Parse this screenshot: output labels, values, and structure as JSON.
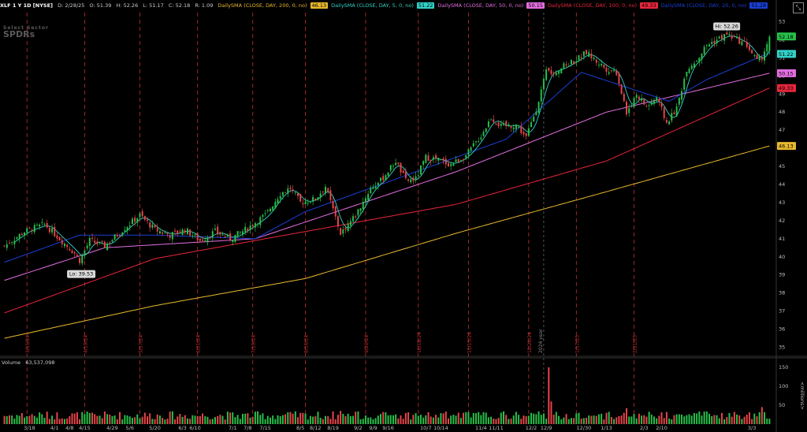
{
  "header": {
    "symbol": "XLF 1 Y 1D [NYSE]",
    "date": "D: 2/28/25",
    "open": "O: 51.39",
    "high": "H: 52.26",
    "low": "L: 51.17",
    "close": "C: 52.18",
    "range": "R: 1.09",
    "studies": [
      {
        "label": "DailySMA (CLOSE, DAY, 200, 0, no)",
        "value": "46.13",
        "color": "#e8b92e"
      },
      {
        "label": "DailySMA (CLOSE, DAY, 5, 0, no)",
        "value": "51.22",
        "color": "#32d2c8"
      },
      {
        "label": "DailySMA (CLOSE, DAY, 50, 0, no)",
        "value": "50.15",
        "color": "#e36ee0"
      },
      {
        "label": "DailySMA (CLOSE, DAY, 100, 0, no)",
        "value": "49.33",
        "color": "#e8263c"
      },
      {
        "label": "DailySMA (CLOSE, DAY, 20, 0, no)",
        "value": "51.28",
        "color": "#1a3fd6"
      }
    ]
  },
  "logo": {
    "line1": "Select Sector",
    "line2": "SPDRs"
  },
  "annotations": {
    "hi": "Hi: 52.26",
    "lo": "Lo: 39.53",
    "year_marker": "2024 year"
  },
  "volume": {
    "label": "Volume",
    "value": "63,537,098",
    "axis_label": "<millions>",
    "ticks": [
      50,
      100,
      150
    ]
  },
  "colors": {
    "up": "#27c04a",
    "down": "#e8454a",
    "background": "#000000",
    "expiry_line": "#c03030",
    "grid_text": "#bfbfbf"
  },
  "chart_data": {
    "type": "candlestick",
    "title": "XLF 1 Y 1D [NYSE]",
    "ylim": [
      34.5,
      53.5
    ],
    "yticks": [
      35,
      36,
      37,
      38,
      39,
      40,
      41,
      42,
      43,
      44,
      45,
      46,
      47,
      48,
      49,
      50,
      51,
      52,
      53
    ],
    "price_labels": [
      {
        "value": 52.18,
        "text": "52.18",
        "color": "#27c04a"
      },
      {
        "value": 51.22,
        "text": "51.22",
        "color": "#32d2c8"
      },
      {
        "value": 50.15,
        "text": "50.15",
        "color": "#e36ee0"
      },
      {
        "value": 49.33,
        "text": "49.33",
        "color": "#e8263c"
      },
      {
        "value": 46.13,
        "text": "46.13",
        "color": "#e8b92e"
      }
    ],
    "x_date_labels": [
      "3/18",
      "4/1",
      "4/8",
      "4/15",
      "4/29",
      "5/6",
      "5/20",
      "6/3",
      "6/10",
      "7/1",
      "7/8",
      "7/15",
      "8/5",
      "8/12",
      "8/19",
      "9/2",
      "9/9",
      "9/16",
      "10/7",
      "10/14",
      "11/4",
      "11/11",
      "12/2",
      "12/9",
      "12/30",
      "1/13",
      "2/3",
      "2/10",
      "3/3"
    ],
    "expiration_labels": [
      "3/15/24",
      "4/19/24",
      "5/17/24",
      "6/21/24",
      "7/19/24",
      "8/16/24",
      "9/20/24",
      "10/18/24",
      "11/15/24",
      "12/20/24",
      "1/17/25",
      "2/21/25"
    ],
    "close_anchors": [
      [
        0,
        40.6
      ],
      [
        8,
        41.4
      ],
      [
        16,
        41.8
      ],
      [
        22,
        41.0
      ],
      [
        28,
        40.2
      ],
      [
        30,
        39.8
      ],
      [
        34,
        40.9
      ],
      [
        40,
        40.6
      ],
      [
        48,
        41.6
      ],
      [
        54,
        42.3
      ],
      [
        60,
        41.5
      ],
      [
        66,
        41.2
      ],
      [
        72,
        41.5
      ],
      [
        78,
        40.9
      ],
      [
        84,
        41.4
      ],
      [
        90,
        41.0
      ],
      [
        96,
        41.5
      ],
      [
        104,
        42.3
      ],
      [
        110,
        43.5
      ],
      [
        114,
        43.8
      ],
      [
        118,
        43.0
      ],
      [
        124,
        43.2
      ],
      [
        128,
        43.9
      ],
      [
        134,
        41.3
      ],
      [
        140,
        42.3
      ],
      [
        146,
        43.8
      ],
      [
        150,
        44.2
      ],
      [
        156,
        45.3
      ],
      [
        160,
        44.2
      ],
      [
        164,
        44.3
      ],
      [
        168,
        45.5
      ],
      [
        172,
        45.4
      ],
      [
        178,
        45.1
      ],
      [
        184,
        45.6
      ],
      [
        190,
        46.7
      ],
      [
        194,
        47.7
      ],
      [
        198,
        47.2
      ],
      [
        204,
        47.3
      ],
      [
        208,
        46.6
      ],
      [
        212,
        48.2
      ],
      [
        216,
        50.2
      ],
      [
        220,
        50.3
      ],
      [
        224,
        50.6
      ],
      [
        228,
        50.9
      ],
      [
        232,
        51.3
      ],
      [
        236,
        50.8
      ],
      [
        240,
        50.4
      ],
      [
        244,
        50.2
      ],
      [
        248,
        48.0
      ],
      [
        252,
        49.0
      ],
      [
        256,
        48.3
      ],
      [
        260,
        48.8
      ],
      [
        264,
        47.4
      ],
      [
        268,
        48.2
      ],
      [
        272,
        50.4
      ],
      [
        276,
        50.9
      ],
      [
        280,
        51.7
      ],
      [
        284,
        52.0
      ],
      [
        288,
        52.3
      ],
      [
        292,
        52.0
      ],
      [
        296,
        51.7
      ],
      [
        300,
        50.8
      ],
      [
        303,
        51.2
      ],
      [
        305,
        52.18
      ]
    ],
    "n_bars": 306,
    "hi": {
      "value": 52.26,
      "index": 287
    },
    "lo": {
      "value": 39.53,
      "index": 30
    },
    "sma": [
      {
        "period": 200,
        "color": "#e8b92e",
        "anchors": [
          [
            0,
            35.5
          ],
          [
            60,
            37.3
          ],
          [
            120,
            38.8
          ],
          [
            180,
            41.3
          ],
          [
            240,
            43.6
          ],
          [
            305,
            46.13
          ]
        ]
      },
      {
        "period": 100,
        "color": "#e8263c",
        "anchors": [
          [
            0,
            36.9
          ],
          [
            60,
            39.9
          ],
          [
            120,
            41.4
          ],
          [
            180,
            42.9
          ],
          [
            240,
            45.3
          ],
          [
            305,
            49.33
          ]
        ]
      },
      {
        "period": 50,
        "color": "#e36ee0",
        "anchors": [
          [
            0,
            38.7
          ],
          [
            40,
            40.5
          ],
          [
            100,
            41.0
          ],
          [
            180,
            44.7
          ],
          [
            240,
            48.0
          ],
          [
            305,
            50.15
          ]
        ]
      },
      {
        "period": 20,
        "color": "#1a3fd6",
        "anchors": [
          [
            0,
            39.7
          ],
          [
            30,
            41.2
          ],
          [
            60,
            41.2
          ],
          [
            100,
            41.0
          ],
          [
            120,
            42.5
          ],
          [
            160,
            44.5
          ],
          [
            200,
            46.5
          ],
          [
            230,
            50.2
          ],
          [
            265,
            48.6
          ],
          [
            280,
            49.8
          ],
          [
            305,
            51.28
          ]
        ]
      }
    ],
    "volume_max": 150,
    "volume_spikes": [
      [
        134,
        35
      ],
      [
        217,
        150
      ],
      [
        218,
        60
      ],
      [
        248,
        42
      ],
      [
        264,
        32
      ],
      [
        302,
        45
      ]
    ]
  }
}
